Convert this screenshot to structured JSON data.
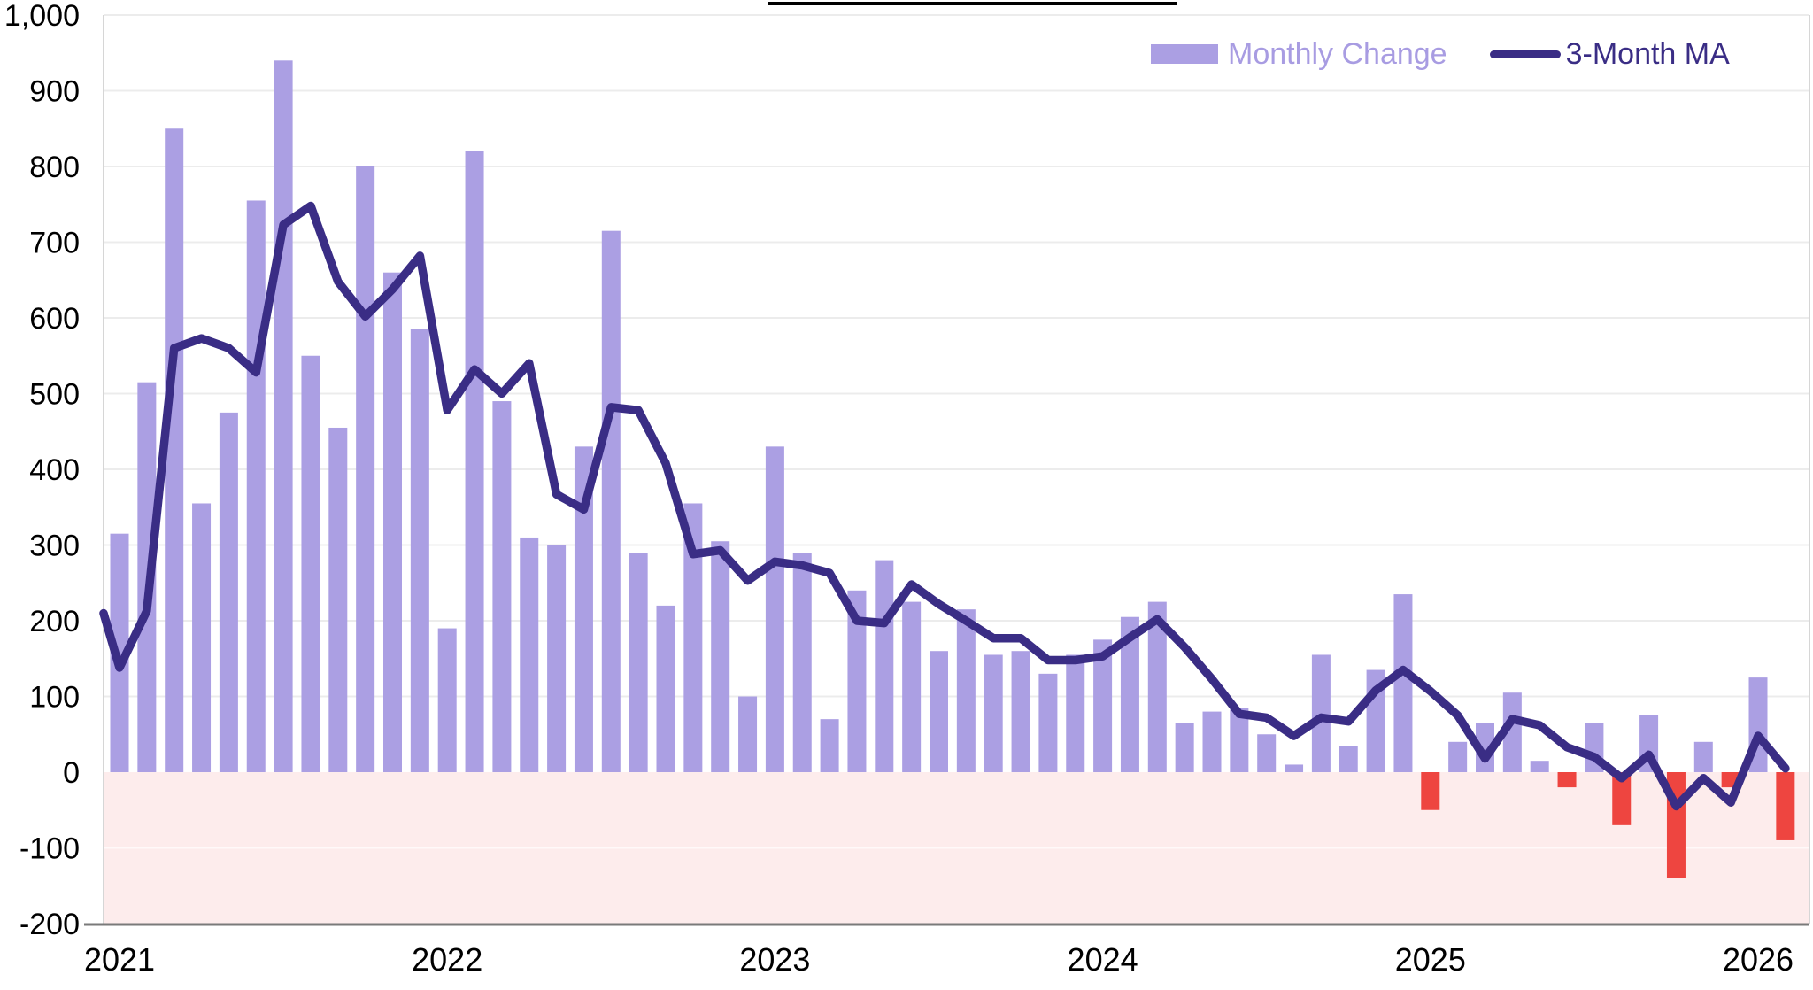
{
  "chart_data": {
    "type": "bar",
    "combo": "bar+line",
    "title": "",
    "months": [
      "2021-01",
      "2021-02",
      "2021-03",
      "2021-04",
      "2021-05",
      "2021-06",
      "2021-07",
      "2021-08",
      "2021-09",
      "2021-10",
      "2021-11",
      "2021-12",
      "2022-01",
      "2022-02",
      "2022-03",
      "2022-04",
      "2022-05",
      "2022-06",
      "2022-07",
      "2022-08",
      "2022-09",
      "2022-10",
      "2022-11",
      "2022-12",
      "2023-01",
      "2023-02",
      "2023-03",
      "2023-04",
      "2023-05",
      "2023-06",
      "2023-07",
      "2023-08",
      "2023-09",
      "2023-10",
      "2023-11",
      "2023-12",
      "2024-01",
      "2024-02",
      "2024-03",
      "2024-04",
      "2024-05",
      "2024-06",
      "2024-07",
      "2024-08",
      "2024-09",
      "2024-10",
      "2024-11",
      "2024-12",
      "2025-01",
      "2025-02",
      "2025-03",
      "2025-04",
      "2025-05",
      "2025-06",
      "2025-07",
      "2025-08",
      "2025-09",
      "2025-10",
      "2025-11",
      "2025-12",
      "2026-01",
      "2026-02"
    ],
    "series": [
      {
        "name": "Monthly Change",
        "type": "bar",
        "values": [
          315,
          515,
          850,
          355,
          475,
          755,
          940,
          550,
          455,
          800,
          660,
          585,
          190,
          820,
          490,
          310,
          300,
          430,
          715,
          290,
          220,
          355,
          305,
          100,
          430,
          290,
          70,
          240,
          280,
          225,
          160,
          215,
          155,
          160,
          130,
          155,
          175,
          205,
          225,
          65,
          80,
          85,
          50,
          10,
          155,
          35,
          135,
          235,
          -50,
          40,
          65,
          105,
          15,
          -20,
          65,
          -70,
          75,
          -140,
          40,
          -20,
          125,
          -90
        ]
      },
      {
        "name": "3-Month MA",
        "type": "line",
        "edge_start_value": 210,
        "values": [
          138,
          213,
          560,
          573,
          560,
          528,
          723,
          748,
          648,
          602,
          638,
          682,
          478,
          532,
          500,
          540,
          367,
          347,
          482,
          478,
          408,
          288,
          293,
          253,
          278,
          273,
          263,
          200,
          197,
          248,
          222,
          200,
          177,
          177,
          148,
          148,
          153,
          178,
          202,
          165,
          123,
          77,
          72,
          48,
          72,
          67,
          108,
          135,
          107,
          75,
          18,
          70,
          62,
          33,
          20,
          -8,
          23,
          -45,
          -8,
          -40,
          48,
          5
        ]
      }
    ],
    "x_axis": {
      "ticks": [
        {
          "label": "2021",
          "month_index": 0
        },
        {
          "label": "2022",
          "month_index": 12
        },
        {
          "label": "2023",
          "month_index": 24
        },
        {
          "label": "2024",
          "month_index": 36
        },
        {
          "label": "2025",
          "month_index": 48
        },
        {
          "label": "2026",
          "month_index": 60
        }
      ]
    },
    "y_axis": {
      "min": -200,
      "max": 1000,
      "tick_step": 100,
      "tick_labels": [
        "1,000",
        "900",
        "800",
        "700",
        "600",
        "500",
        "400",
        "300",
        "200",
        "100",
        "0",
        "-100",
        "-200"
      ],
      "tick_values": [
        1000,
        900,
        800,
        700,
        600,
        500,
        400,
        300,
        200,
        100,
        0,
        -100,
        -200
      ]
    },
    "ylim": [
      -200,
      1000
    ],
    "grid": true,
    "legend_position": "top-right",
    "colors": {
      "bar_positive": "#ab9fe3",
      "bar_negative": "#ee4540",
      "ma_line": "#3a2d85",
      "legend_bar_text": "#a89ce2",
      "legend_line_text": "#3a2d85",
      "negative_region": "#fdecec",
      "gridline": "#ececec",
      "axis_line": "#7a7a7a",
      "axis_text": "#000000",
      "plot_border": "#d6d6d6",
      "title_underline": "#000000"
    }
  }
}
